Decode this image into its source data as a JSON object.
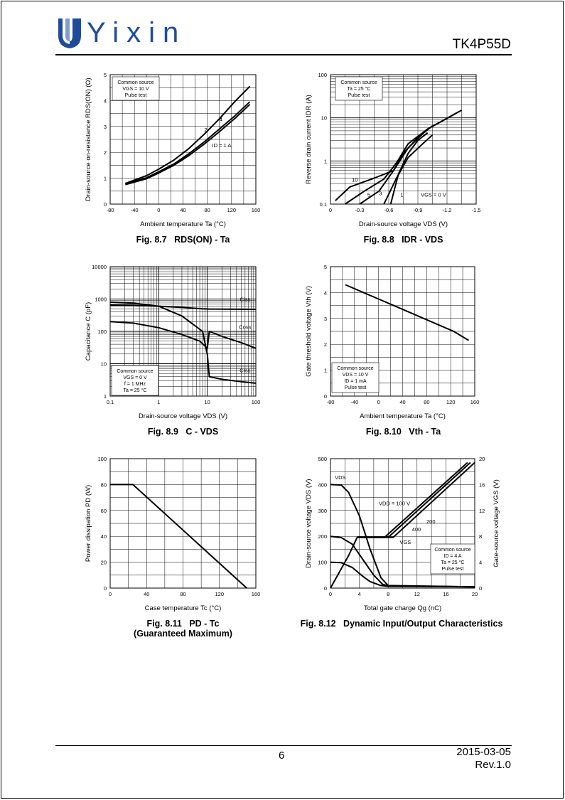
{
  "header": {
    "brand": "Yixin",
    "part_number": "TK4P55D",
    "accent_color": "#1f4c9a"
  },
  "footer": {
    "page_number": "6",
    "date": "2015-03-05",
    "revision": "Rev.1.0"
  },
  "chart_data": [
    {
      "id": "fig87",
      "type": "line",
      "caption_fig": "Fig. 8.7",
      "caption_title": "RDS(ON) - Ta",
      "xlabel": "Ambient temperature  Ta  (°C)",
      "ylabel": "Drain-source on-resistance  RDS(ON)  (Ω)",
      "xlim": [
        -80,
        160
      ],
      "ylim": [
        0,
        5
      ],
      "xticks": [
        -80,
        -40,
        0,
        40,
        80,
        120,
        160
      ],
      "yticks": [
        0,
        1,
        2,
        3,
        4,
        5
      ],
      "note": [
        "Common source",
        "VGS = 10 V",
        "Pulse test"
      ],
      "series": [
        {
          "name": "4",
          "x": [
            -55,
            -20,
            0,
            25,
            50,
            75,
            100,
            125,
            150
          ],
          "y": [
            0.8,
            1.1,
            1.35,
            1.7,
            2.15,
            2.7,
            3.3,
            3.95,
            4.55
          ]
        },
        {
          "name": "2",
          "x": [
            -55,
            -20,
            0,
            25,
            50,
            75,
            100,
            125,
            150
          ],
          "y": [
            0.78,
            1.02,
            1.25,
            1.55,
            1.95,
            2.4,
            2.9,
            3.4,
            3.95
          ]
        },
        {
          "name": "ID = 1 A",
          "x": [
            -55,
            -20,
            0,
            25,
            50,
            75,
            100,
            125,
            150
          ],
          "y": [
            0.75,
            0.98,
            1.2,
            1.5,
            1.88,
            2.32,
            2.8,
            3.3,
            3.85
          ]
        }
      ]
    },
    {
      "id": "fig88",
      "type": "line",
      "caption_fig": "Fig. 8.8",
      "caption_title": "IDR - VDS",
      "xlabel": "Drain-source voltage  VDS  (V)",
      "ylabel": "Reverse drain current  IDR  (A)",
      "xlim": [
        0,
        -1.5
      ],
      "ylim": [
        0.1,
        100
      ],
      "yscale": "log",
      "xticks": [
        0,
        -0.3,
        -0.6,
        -0.9,
        -1.2,
        -1.5
      ],
      "yticks": [
        0.1,
        1,
        10,
        100
      ],
      "note": [
        "Common source",
        "Ta = 25 °C",
        "Pulse test"
      ],
      "series": [
        {
          "name": "10",
          "x": [
            -0.05,
            -0.2,
            -0.45,
            -0.65,
            -0.8,
            -1.0,
            -1.35
          ],
          "y": [
            0.12,
            0.25,
            0.4,
            0.6,
            2.0,
            5.5,
            15.0
          ]
        },
        {
          "name": "5",
          "x": [
            -0.15,
            -0.35,
            -0.55,
            -0.68,
            -0.8,
            -1.0,
            -1.3
          ],
          "y": [
            0.1,
            0.2,
            0.38,
            0.9,
            2.5,
            5.5,
            13.0
          ]
        },
        {
          "name": "3",
          "x": [
            -0.3,
            -0.5,
            -0.65,
            -0.75,
            -0.9,
            -1.05
          ],
          "y": [
            0.1,
            0.2,
            0.6,
            1.5,
            3.5,
            6.5
          ]
        },
        {
          "name": "1",
          "x": [
            -0.55,
            -0.68,
            -0.8,
            -0.95,
            -1.05
          ],
          "y": [
            0.1,
            0.4,
            1.2,
            2.5,
            4.0
          ]
        },
        {
          "name": "VGS = 0 V",
          "x": [
            -0.62,
            -0.7,
            -0.8,
            -0.9,
            -1.0
          ],
          "y": [
            0.1,
            0.5,
            1.5,
            3.0,
            4.5
          ]
        }
      ]
    },
    {
      "id": "fig89",
      "type": "line",
      "caption_fig": "Fig. 8.9",
      "caption_title": "C - VDS",
      "xlabel": "Drain-source voltage  VDS  (V)",
      "ylabel": "Capacitance  C  (pF)",
      "xlim": [
        0.1,
        100
      ],
      "ylim": [
        1,
        10000
      ],
      "xscale": "log",
      "yscale": "log",
      "xticks": [
        0.1,
        1,
        10,
        100
      ],
      "yticks": [
        1,
        10,
        100,
        1000,
        10000
      ],
      "note": [
        "Common source",
        "VGS = 0 V",
        "f = 1 MHz",
        "Ta = 25 °C"
      ],
      "series": [
        {
          "name": "Ciss",
          "x": [
            0.1,
            0.3,
            1,
            3,
            8,
            11,
            30,
            100
          ],
          "y": [
            650,
            640,
            600,
            550,
            500,
            490,
            485,
            480
          ]
        },
        {
          "name": "Coss",
          "x": [
            0.1,
            0.3,
            1,
            3,
            7,
            10,
            11,
            20,
            50,
            100
          ],
          "y": [
            200,
            180,
            130,
            80,
            50,
            30,
            100,
            70,
            45,
            30
          ]
        },
        {
          "name": "Crss",
          "x": [
            0.1,
            0.3,
            1,
            3,
            8,
            10,
            11,
            20,
            50,
            100
          ],
          "y": [
            800,
            750,
            600,
            300,
            100,
            20,
            4,
            3.3,
            2.8,
            2.5
          ]
        }
      ]
    },
    {
      "id": "fig810",
      "type": "line",
      "caption_fig": "Fig. 8.10",
      "caption_title": "Vth - Ta",
      "xlabel": "Ambient temperature  Ta  (°C)",
      "ylabel": "Gate threshold voltage  Vth  (V)",
      "xlim": [
        -80,
        160
      ],
      "ylim": [
        0,
        5
      ],
      "xticks": [
        -80,
        -40,
        0,
        40,
        80,
        120,
        160
      ],
      "yticks": [
        0,
        1,
        2,
        3,
        4,
        5
      ],
      "note": [
        "Common source",
        "VDS = 10 V",
        "ID = 1 mA",
        "Pulse test"
      ],
      "series": [
        {
          "name": "",
          "x": [
            -55,
            -25,
            0,
            25,
            50,
            75,
            100,
            125,
            150
          ],
          "y": [
            4.3,
            4.0,
            3.75,
            3.5,
            3.25,
            3.0,
            2.75,
            2.5,
            2.15
          ]
        }
      ]
    },
    {
      "id": "fig811",
      "type": "line",
      "caption_fig": "Fig. 8.11",
      "caption_title": "PD - Tc",
      "caption_sub": "(Guaranteed Maximum)",
      "xlabel": "Case temperature  Tc  (°C)",
      "ylabel": "Power dissipation  PD  (W)",
      "xlim": [
        0,
        160
      ],
      "ylim": [
        0,
        100
      ],
      "xticks": [
        0,
        40,
        80,
        120,
        160
      ],
      "yticks": [
        0,
        20,
        40,
        60,
        80,
        100
      ],
      "series": [
        {
          "name": "",
          "x": [
            0,
            25,
            150
          ],
          "y": [
            80,
            80,
            0
          ]
        }
      ]
    },
    {
      "id": "fig812",
      "type": "line",
      "caption_fig": "Fig. 8.12",
      "caption_title": "Dynamic Input/Output Characteristics",
      "xlabel": "Total gate charge  Qg  (nC)",
      "ylabel": "Drain-source voltage  VDS  (V)",
      "ylabel2": "Gate-source voltage  VGS  (V)",
      "xlim": [
        0,
        20
      ],
      "ylim": [
        0,
        500
      ],
      "ylim2": [
        0,
        20
      ],
      "xticks": [
        0,
        4,
        8,
        12,
        16,
        20
      ],
      "yticks": [
        0,
        100,
        200,
        300,
        400,
        500
      ],
      "yticks2": [
        0,
        4,
        8,
        12,
        16,
        20
      ],
      "note": [
        "Common source",
        "ID = 4 A",
        "Ta = 25 °C",
        "Pulse test"
      ],
      "labels": {
        "vds": "VDS",
        "vgs": "VGS",
        "vdd": "VDD = 100 V",
        "v200": "200",
        "v400": "400"
      },
      "series": [
        {
          "name": "VDS 400",
          "x": [
            0,
            1.5,
            2.5,
            4,
            5.5,
            7,
            8,
            20
          ],
          "y": [
            400,
            398,
            370,
            280,
            150,
            40,
            10,
            5
          ]
        },
        {
          "name": "VDS 200",
          "x": [
            0,
            1.5,
            3,
            4.5,
            6,
            7.2,
            8,
            20
          ],
          "y": [
            200,
            195,
            170,
            110,
            50,
            15,
            8,
            5
          ]
        },
        {
          "name": "VDS 100",
          "x": [
            0,
            1.5,
            3,
            4.5,
            5.5,
            7,
            8,
            20
          ],
          "y": [
            100,
            98,
            80,
            45,
            25,
            10,
            7,
            5
          ]
        },
        {
          "name": "VGS 100",
          "x": [
            0,
            2.5,
            3.7,
            7.5,
            19.0
          ],
          "y": [
            0,
            5,
            7.85,
            7.85,
            19.4
          ]
        },
        {
          "name": "VGS 200",
          "x": [
            3.7,
            8.0,
            19.4
          ],
          "y": [
            7.85,
            7.85,
            19.4
          ]
        },
        {
          "name": "VGS 400",
          "x": [
            3.7,
            8.7,
            20.0
          ],
          "y": [
            7.85,
            7.85,
            19.4
          ]
        }
      ]
    }
  ]
}
